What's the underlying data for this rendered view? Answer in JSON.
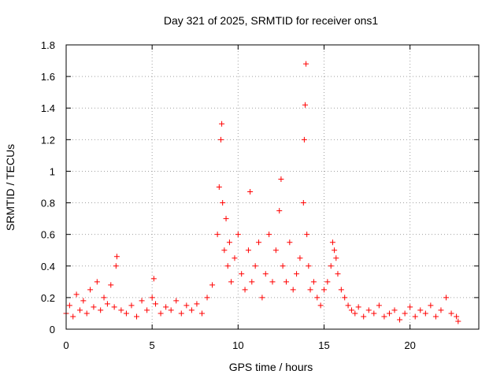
{
  "chart_data": {
    "type": "scatter",
    "title": "Day 321 of 2025, SRMTID for receiver ons1",
    "xlabel": "GPS time / hours",
    "ylabel": "SRMTID / TECUs",
    "xlim": [
      0,
      24
    ],
    "ylim": [
      0,
      1.8
    ],
    "xticks": [
      0,
      5,
      10,
      15,
      20
    ],
    "xtick_labels": [
      "0",
      "5",
      "10",
      "15",
      "20"
    ],
    "yticks": [
      0,
      0.2,
      0.4,
      0.6,
      0.8,
      1.0,
      1.2,
      1.4,
      1.6,
      1.8
    ],
    "ytick_labels": [
      "0",
      "0.2",
      "0.4",
      "0.6",
      "0.8",
      "1",
      "1.2",
      "1.4",
      "1.6",
      "1.8"
    ],
    "grid": true,
    "marker": "+",
    "color": "#ff0000",
    "series": [
      {
        "name": "SRMTID",
        "x": [
          0.0,
          0.2,
          0.4,
          0.6,
          0.8,
          1.0,
          1.2,
          1.4,
          1.6,
          1.8,
          2.0,
          2.2,
          2.4,
          2.6,
          2.8,
          2.9,
          2.95,
          3.2,
          3.5,
          3.8,
          4.1,
          4.4,
          4.7,
          5.0,
          5.1,
          5.2,
          5.5,
          5.8,
          6.1,
          6.4,
          6.7,
          7.0,
          7.3,
          7.6,
          7.9,
          8.2,
          8.5,
          8.8,
          8.9,
          9.0,
          9.05,
          9.1,
          9.2,
          9.3,
          9.4,
          9.5,
          9.6,
          9.8,
          10.0,
          10.2,
          10.4,
          10.6,
          10.7,
          10.8,
          11.0,
          11.2,
          11.4,
          11.6,
          11.8,
          12.0,
          12.2,
          12.4,
          12.5,
          12.6,
          12.8,
          13.0,
          13.2,
          13.4,
          13.6,
          13.8,
          13.85,
          13.9,
          13.95,
          14.0,
          14.1,
          14.2,
          14.4,
          14.6,
          14.8,
          15.0,
          15.2,
          15.4,
          15.5,
          15.6,
          15.7,
          15.8,
          16.0,
          16.2,
          16.4,
          16.6,
          16.8,
          17.0,
          17.3,
          17.6,
          17.9,
          18.2,
          18.5,
          18.8,
          19.1,
          19.4,
          19.7,
          20.0,
          20.3,
          20.6,
          20.9,
          21.2,
          21.5,
          21.8,
          22.1,
          22.4,
          22.7,
          22.8
        ],
        "y": [
          0.1,
          0.15,
          0.08,
          0.22,
          0.12,
          0.18,
          0.1,
          0.25,
          0.14,
          0.3,
          0.12,
          0.2,
          0.16,
          0.28,
          0.14,
          0.4,
          0.46,
          0.12,
          0.1,
          0.15,
          0.08,
          0.18,
          0.12,
          0.2,
          0.32,
          0.16,
          0.1,
          0.14,
          0.12,
          0.18,
          0.1,
          0.15,
          0.12,
          0.16,
          0.1,
          0.2,
          0.28,
          0.6,
          0.9,
          1.2,
          1.3,
          0.8,
          0.5,
          0.7,
          0.4,
          0.55,
          0.3,
          0.45,
          0.6,
          0.35,
          0.25,
          0.5,
          0.87,
          0.3,
          0.4,
          0.55,
          0.2,
          0.35,
          0.6,
          0.3,
          0.5,
          0.75,
          0.95,
          0.4,
          0.3,
          0.55,
          0.25,
          0.35,
          0.45,
          0.8,
          1.2,
          1.42,
          1.68,
          0.6,
          0.4,
          0.25,
          0.3,
          0.2,
          0.15,
          0.25,
          0.3,
          0.4,
          0.55,
          0.5,
          0.45,
          0.35,
          0.25,
          0.2,
          0.15,
          0.12,
          0.1,
          0.14,
          0.08,
          0.12,
          0.1,
          0.15,
          0.08,
          0.1,
          0.12,
          0.06,
          0.1,
          0.14,
          0.08,
          0.12,
          0.1,
          0.15,
          0.08,
          0.12,
          0.2,
          0.1,
          0.08,
          0.05
        ]
      }
    ]
  }
}
